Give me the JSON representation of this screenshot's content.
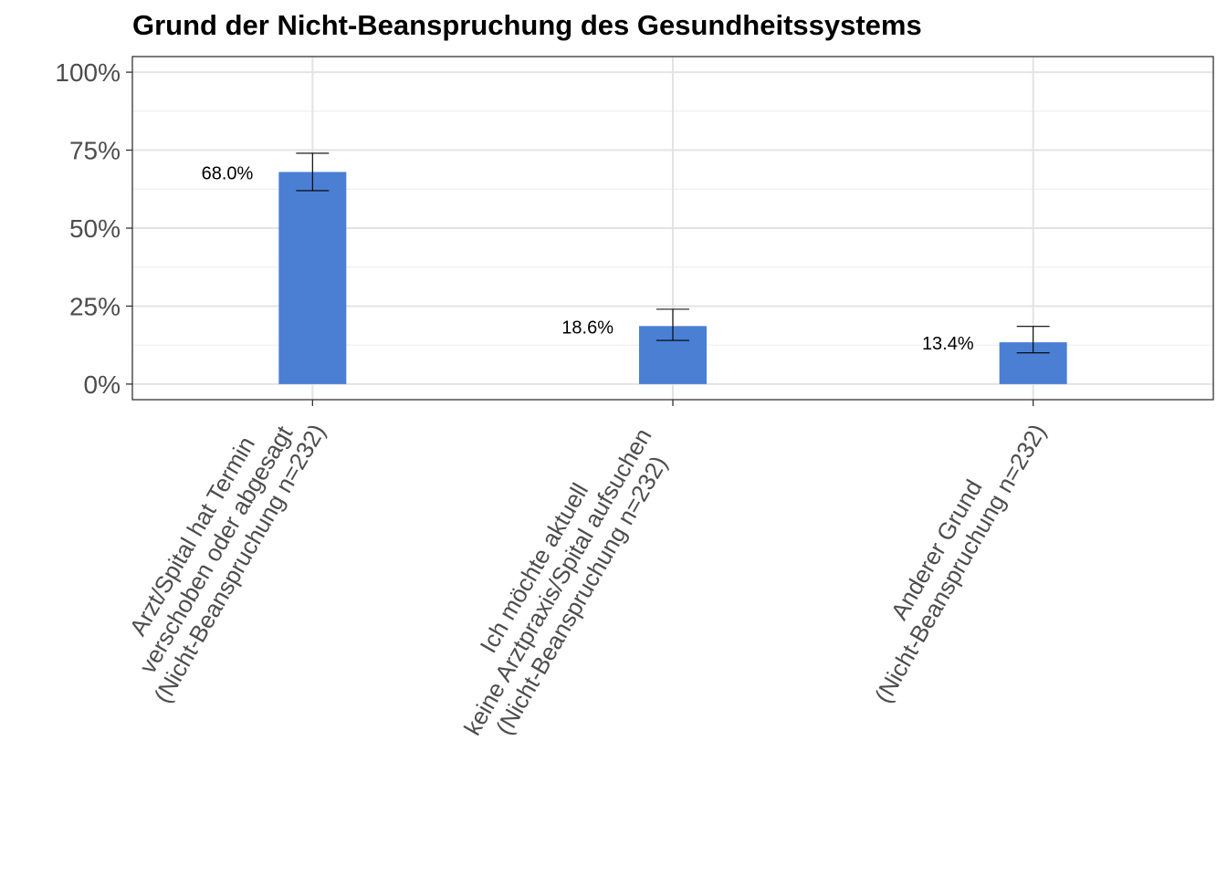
{
  "chart_data": {
    "type": "bar",
    "title": "Grund der Nicht-Beanspruchung des Gesundheitssystems",
    "xlabel": "",
    "ylabel": "",
    "ylim": [
      -0.05,
      1.05
    ],
    "yticks": [
      0,
      0.25,
      0.5,
      0.75,
      1.0
    ],
    "ytick_labels": [
      "0%",
      "25%",
      "50%",
      "75%",
      "100%"
    ],
    "grid": true,
    "bar_color": "#4a7fd4",
    "categories": [
      [
        "Arzt/Spital hat Termin",
        "verschoben oder abgesagt",
        "(Nicht-Beanspruchung n=232)"
      ],
      [
        "Ich möchte aktuell",
        "keine Arztpraxis/Spital aufsuchen",
        "(Nicht-Beanspruchung n=232)"
      ],
      [
        "Anderer Grund",
        "(Nicht-Beanspruchung n=232)"
      ]
    ],
    "values": [
      0.68,
      0.186,
      0.134
    ],
    "error_low": [
      0.62,
      0.14,
      0.1
    ],
    "error_high": [
      0.74,
      0.24,
      0.185
    ],
    "data_labels": [
      "68.0%",
      "18.6%",
      "13.4%"
    ]
  }
}
